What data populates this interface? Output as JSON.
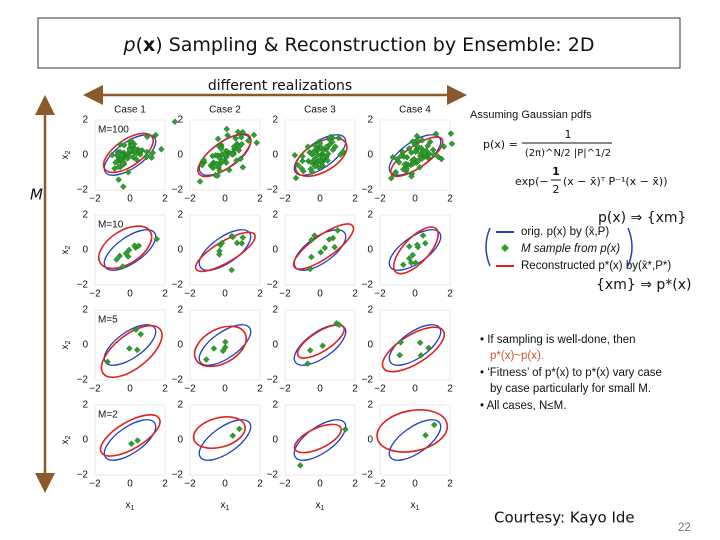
{
  "header": {
    "title_parts": [
      "p",
      "(",
      "x",
      ") Sampling & Reconstruction by Ensemble: 2D"
    ]
  },
  "realizations_label": "different realizations",
  "m_axis_label": "M",
  "figure": {
    "cases": [
      "Case 1",
      "Case 2",
      "Case 3",
      "Case 4"
    ],
    "rows": [
      "M=100",
      "M=10",
      "M=5",
      "M=2"
    ],
    "yticks": [
      "2",
      "0",
      "−2"
    ],
    "xticks": [
      "−2",
      "0",
      "2"
    ],
    "y_label": "x",
    "y_sub": "2",
    "x_label": "x",
    "x_sub": "1"
  },
  "gaussian": {
    "heading": "Assuming Gaussian pdfs",
    "lhs": "p(x) =",
    "numerator": "1",
    "denominator": "(2π)^N/2 |P|^1/2",
    "exp_start": "exp(−",
    "half_num": "1",
    "half_den": "2",
    "exp_rest": "(x − x̄)ᵀ P⁻¹(x − x̄))"
  },
  "flow_top": "p(x) ⇒ {xm}",
  "legend": [
    "orig. p(x) by (x̄,P)",
    "M sample from p(x)",
    "Reconstructed p*(x) by(x̄*,P*)"
  ],
  "flow_bottom": "{xm} ⇒ p*(x)",
  "bullets": [
    "• If sampling is well-done, then",
    "p*(x)~p(x).",
    "• ‘Fitness’ of p*(x) to p*(x) vary case",
    "by case particularly for small M.",
    "• All cases, N≤M."
  ],
  "credit": "Courtesy: Kayo Ide",
  "page_number": "22"
}
